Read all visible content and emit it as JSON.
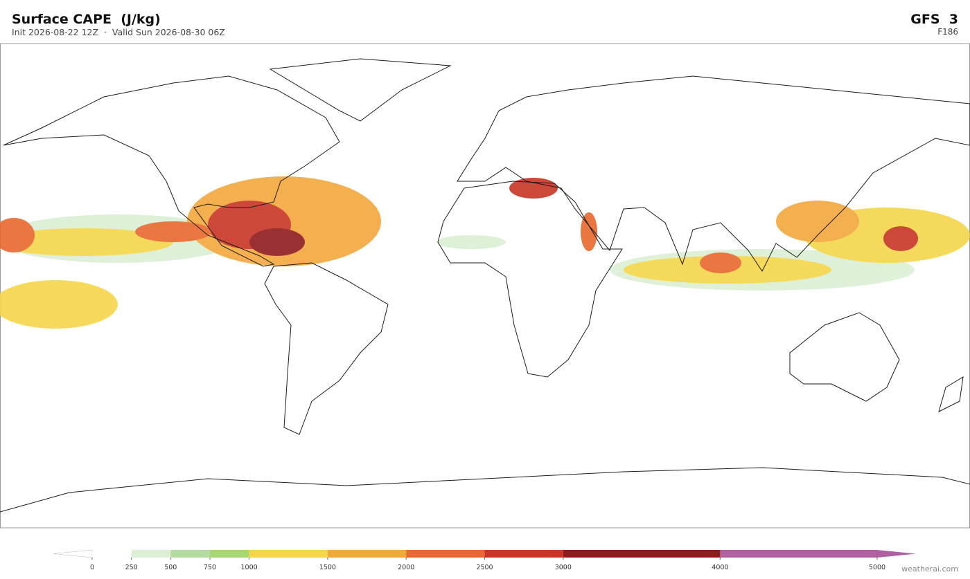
{
  "header": {
    "title": "Surface CAPE  (J/kg)",
    "subtitle": "Init 2026-08-22 12Z  ·  Valid Sun 2026-08-30 06Z",
    "model": "GFS  3",
    "forecast_hour": "F186"
  },
  "colorbar": {
    "ticks": [
      0,
      250,
      500,
      750,
      1000,
      1500,
      2000,
      2500,
      3000,
      4000,
      5000
    ],
    "colors": [
      "#ffffff",
      "#dcefd4",
      "#b5dca0",
      "#a6d86e",
      "#f5d54a",
      "#f3a83b",
      "#e8692e",
      "#c93524",
      "#8e1b1e",
      "#b060a0"
    ],
    "under_color": "#ffffff",
    "over_color": "#b060a0"
  },
  "footer": {
    "credit": "weatherai.com"
  }
}
